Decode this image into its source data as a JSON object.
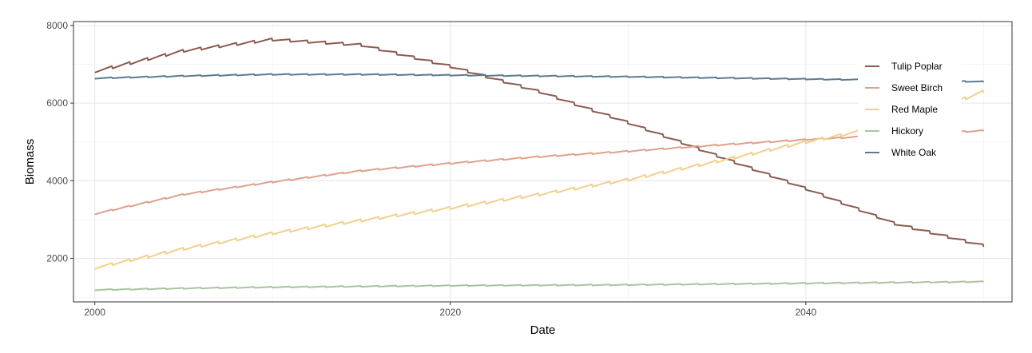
{
  "chart_data": {
    "type": "line",
    "title": "",
    "xlabel": "Date",
    "ylabel": "Biomass",
    "xlim": [
      1998.8,
      2051.6
    ],
    "ylim": [
      880,
      8100
    ],
    "x_ticks": [
      2000,
      2020,
      2040
    ],
    "x_tick_labels": [
      "2000",
      "2020",
      "2040"
    ],
    "y_ticks": [
      2000,
      4000,
      6000,
      8000
    ],
    "y_tick_labels": [
      "2000",
      "4000",
      "6000",
      "8000"
    ],
    "grid": true,
    "legend_position": "right-inside",
    "x": [
      2000,
      2005,
      2010,
      2015,
      2020,
      2025,
      2030,
      2035,
      2040,
      2045,
      2050
    ],
    "series": [
      {
        "name": "Tulip Poplar",
        "color": "#8C5B4F",
        "values": [
          6820,
          7350,
          7640,
          7500,
          6950,
          6300,
          5500,
          4650,
          3800,
          2900,
          2330
        ]
      },
      {
        "name": "Sweet Birch",
        "color": "#E0A08C",
        "values": [
          3150,
          3650,
          3970,
          4260,
          4450,
          4620,
          4760,
          4920,
          5060,
          5180,
          5290
        ]
      },
      {
        "name": "Red Maple",
        "color": "#F0D08C",
        "values": [
          1760,
          2250,
          2650,
          2980,
          3300,
          3650,
          4030,
          4500,
          5000,
          5450,
          6300
        ]
      },
      {
        "name": "Hickory",
        "color": "#A8C4A2",
        "values": [
          1190,
          1230,
          1260,
          1280,
          1300,
          1310,
          1320,
          1340,
          1360,
          1380,
          1400
        ]
      },
      {
        "name": "White Oak",
        "color": "#5B7A91",
        "values": [
          6640,
          6700,
          6740,
          6740,
          6720,
          6700,
          6680,
          6650,
          6620,
          6590,
          6550
        ]
      }
    ]
  }
}
